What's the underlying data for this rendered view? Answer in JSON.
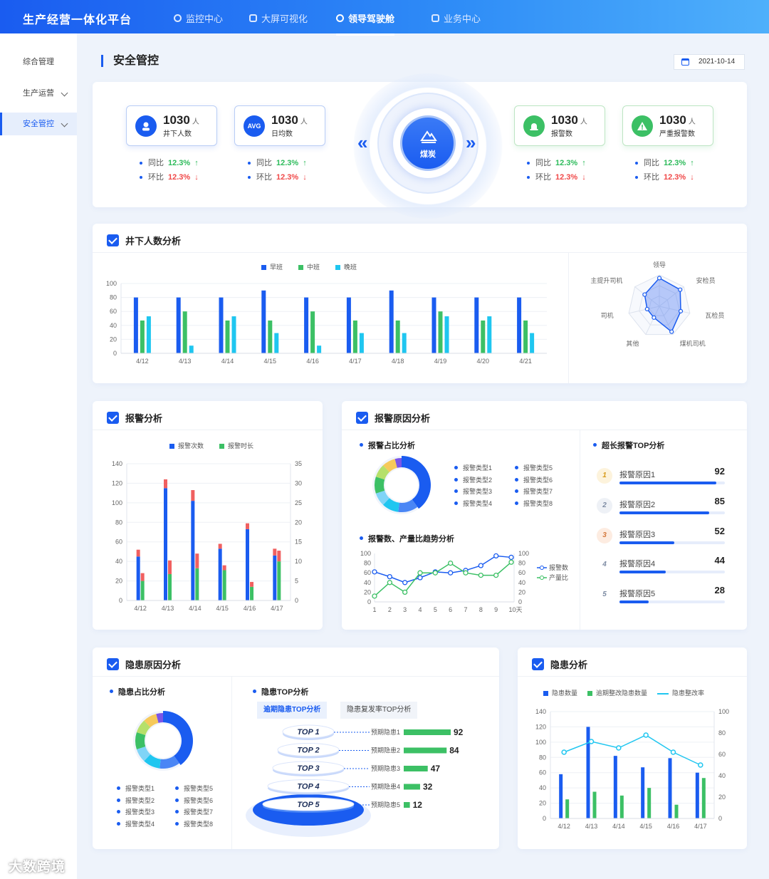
{
  "header": {
    "brand": "生产经营一体化平台",
    "nav": [
      {
        "label": "监控中心",
        "icon": "monitor-icon"
      },
      {
        "label": "大屏可视化",
        "icon": "screen-icon"
      },
      {
        "label": "领导驾驶舱",
        "icon": "cockpit-icon"
      },
      {
        "label": "业务中心",
        "icon": "briefcase-icon"
      }
    ],
    "active_nav": "领导驾驶舱"
  },
  "sidebar": {
    "items": [
      {
        "label": "综合管理"
      },
      {
        "label": "生产运营"
      },
      {
        "label": "安全管控"
      }
    ],
    "active": "安全管控"
  },
  "page": {
    "title": "安全管控",
    "date": "2021-10-14"
  },
  "center": {
    "label": "煤炭",
    "prev": "«",
    "next": "»"
  },
  "stats": [
    {
      "icon": "miner-icon",
      "value": "1030",
      "unit": "人",
      "label": "井下人数",
      "yoy_label": "同比",
      "yoy": "12.3%",
      "mom_label": "环比",
      "mom": "12.3%"
    },
    {
      "icon": "avg-icon",
      "icon_text": "AVG",
      "value": "1030",
      "unit": "人",
      "label": "日均数",
      "yoy_label": "同比",
      "yoy": "12.3%",
      "mom_label": "环比",
      "mom": "12.3%"
    },
    {
      "icon": "alarm-icon",
      "value": "1030",
      "unit": "人",
      "label": "报警数",
      "yoy_label": "同比",
      "yoy": "12.3%",
      "mom_label": "环比",
      "mom": "12.3%"
    },
    {
      "icon": "warning-icon",
      "value": "1030",
      "unit": "人",
      "label": "严重报警数",
      "yoy_label": "同比",
      "yoy": "12.3%",
      "mom_label": "环比",
      "mom": "12.3%"
    }
  ],
  "colors": {
    "primary": "#1a5cf0",
    "green": "#3cc065",
    "cyan": "#1fc6f0",
    "red": "#f04848"
  },
  "underground": {
    "title": "井下人数分析",
    "legend": [
      "早班",
      "中班",
      "晚班"
    ]
  },
  "alarm": {
    "title": "报警分析",
    "legend": [
      "报警次数",
      "报警时长"
    ]
  },
  "alarm_cause": {
    "title": "报警原因分析",
    "pie_title": "报警占比分析",
    "pie_legend": [
      "报警类型1",
      "报警类型2",
      "报警类型3",
      "报警类型4",
      "报警类型5",
      "报警类型6",
      "报警类型7",
      "报警类型8"
    ],
    "trend_title": "报警数、产量比趋势分析",
    "trend_legend": [
      "报警数",
      "产量比"
    ],
    "top_title": "超长报警TOP分析",
    "top": [
      {
        "rank": "1",
        "name": "报警原因1",
        "value": 92
      },
      {
        "rank": "2",
        "name": "报警原因2",
        "value": 85
      },
      {
        "rank": "3",
        "name": "报警原因3",
        "value": 52
      },
      {
        "rank": "4",
        "name": "报警原因4",
        "value": 44
      },
      {
        "rank": "5",
        "name": "报警原因5",
        "value": 28
      }
    ]
  },
  "hazard_cause": {
    "title": "隐患原因分析",
    "pie_title": "隐患占比分析",
    "pie_legend": [
      "报警类型1",
      "报警类型2",
      "报警类型3",
      "报警类型4",
      "报警类型5",
      "报警类型6",
      "报警类型7",
      "报警类型8"
    ],
    "top_title": "隐患TOP分析",
    "tabs": [
      "逾期隐患TOP分析",
      "隐患复发率TOP分析"
    ],
    "top": [
      {
        "rank": "TOP 1",
        "name": "预期隐患1",
        "value": 92
      },
      {
        "rank": "TOP 2",
        "name": "预期隐患2",
        "value": 84
      },
      {
        "rank": "TOP 3",
        "name": "预期隐患3",
        "value": 47
      },
      {
        "rank": "TOP 4",
        "name": "预期隐患4",
        "value": 32
      },
      {
        "rank": "TOP 5",
        "name": "预期隐患5",
        "value": 12
      }
    ]
  },
  "hazard": {
    "title": "隐患分析",
    "legend": [
      "隐患数量",
      "逾期整改隐患数量",
      "隐患整改率"
    ]
  },
  "watermark": "大数跨境",
  "chart_data": [
    {
      "type": "bar",
      "title": "井下人数分析",
      "categories": [
        "4/12",
        "4/13",
        "4/14",
        "4/15",
        "4/16",
        "4/17",
        "4/18",
        "4/19",
        "4/20",
        "4/21"
      ],
      "ylim": [
        0,
        100
      ],
      "yticks": [
        0,
        20,
        40,
        60,
        80,
        100
      ],
      "series": [
        {
          "name": "早班",
          "color": "#1a5cf0",
          "values": [
            80,
            80,
            80,
            90,
            80,
            80,
            90,
            80,
            80,
            80
          ]
        },
        {
          "name": "中班",
          "color": "#3cc065",
          "values": [
            47,
            60,
            47,
            47,
            60,
            47,
            47,
            60,
            47,
            47
          ]
        },
        {
          "name": "晚班",
          "color": "#1fc6f0",
          "values": [
            53,
            11,
            53,
            29,
            11,
            29,
            29,
            53,
            53,
            29
          ]
        }
      ]
    },
    {
      "type": "radar",
      "axes": [
        "领导",
        "安检员",
        "瓦检员",
        "煤机司机",
        "其他",
        "司机",
        "主提升司机"
      ],
      "values": [
        90,
        85,
        70,
        90,
        40,
        40,
        60
      ],
      "max": 100
    },
    {
      "type": "bar",
      "title": "报警分析",
      "categories": [
        "4/12",
        "4/13",
        "4/14",
        "4/15",
        "4/16",
        "4/17"
      ],
      "ylim": [
        0,
        140
      ],
      "yticks": [
        0,
        20,
        40,
        60,
        80,
        100,
        120,
        140
      ],
      "y2lim": [
        0,
        35
      ],
      "y2ticks": [
        0,
        5,
        10,
        15,
        20,
        25,
        30,
        35
      ],
      "series": [
        {
          "name": "报警次数",
          "color": "#1a5cf0",
          "values": [
            45,
            115,
            102,
            53,
            73,
            46
          ]
        },
        {
          "name": "报警时长",
          "color": "#3cc065",
          "values": [
            20,
            27,
            33,
            31,
            14,
            40
          ]
        }
      ],
      "stack_top": {
        "color": "#f06060",
        "values": [
          [
            7,
            8
          ],
          [
            9,
            14
          ],
          [
            11,
            15
          ],
          [
            5,
            5
          ],
          [
            6,
            5
          ],
          [
            7,
            11
          ]
        ]
      }
    },
    {
      "type": "line",
      "title": "报警数、产量比趋势分析",
      "x": [
        "1",
        "2",
        "3",
        "4",
        "5",
        "6",
        "7",
        "8",
        "9",
        "10天"
      ],
      "ylim": [
        0,
        100
      ],
      "yticks": [
        0,
        20,
        40,
        60,
        80,
        100
      ],
      "y2ticks": [
        0,
        20,
        40,
        60,
        80,
        100
      ],
      "series": [
        {
          "name": "报警数",
          "color": "#1a5cf0",
          "values": [
            62,
            52,
            40,
            50,
            62,
            60,
            65,
            75,
            95,
            92
          ]
        },
        {
          "name": "产量比",
          "color": "#3cc065",
          "values": [
            12,
            40,
            20,
            60,
            60,
            80,
            60,
            55,
            55,
            82
          ]
        }
      ]
    },
    {
      "type": "pie",
      "title": "报警占比分析",
      "values": [
        40,
        12,
        10,
        8,
        10,
        8,
        8,
        4
      ],
      "colors": [
        "#1a5cf0",
        "#4a86f5",
        "#1fc6f0",
        "#7fd4f7",
        "#3cc065",
        "#b5e06a",
        "#f6c95a",
        "#7a55e8"
      ]
    },
    {
      "type": "pie",
      "title": "隐患占比分析",
      "values": [
        40,
        12,
        10,
        8,
        10,
        8,
        8,
        4
      ],
      "colors": [
        "#1a5cf0",
        "#4a86f5",
        "#1fc6f0",
        "#7fd4f7",
        "#3cc065",
        "#b5e06a",
        "#f6c95a",
        "#7a55e8"
      ]
    },
    {
      "type": "bar",
      "title": "隐患分析",
      "categories": [
        "4/12",
        "4/13",
        "4/14",
        "4/15",
        "4/16",
        "4/17"
      ],
      "ylim": [
        0,
        140
      ],
      "yticks": [
        0,
        20,
        40,
        60,
        80,
        100,
        120,
        140
      ],
      "y2lim": [
        0,
        100
      ],
      "y2ticks": [
        0,
        20,
        40,
        60,
        80,
        100
      ],
      "series": [
        {
          "name": "隐患数量",
          "color": "#1a5cf0",
          "values": [
            58,
            120,
            82,
            67,
            79,
            60
          ]
        },
        {
          "name": "逾期整改隐患数量",
          "color": "#3cc065",
          "values": [
            25,
            35,
            30,
            40,
            18,
            53
          ]
        },
        {
          "name": "隐患整改率",
          "color": "#1fc6f0",
          "type": "line",
          "values": [
            62,
            72,
            66,
            78,
            62,
            50
          ]
        }
      ]
    }
  ]
}
